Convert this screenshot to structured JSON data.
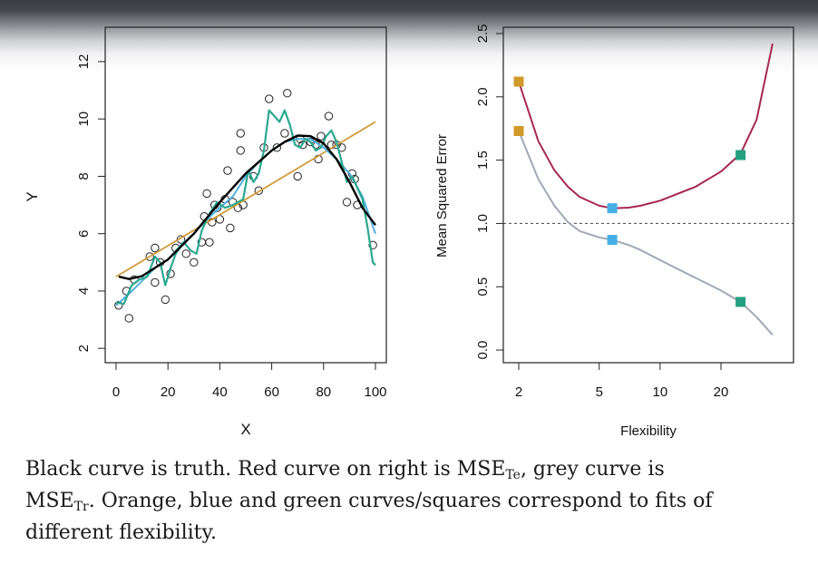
{
  "caption": {
    "line1_pre": "Black curve is truth. Red curve on right is MSE",
    "sub_te": "Te",
    "line1_post": ", grey curve is",
    "line2_pre": "MSE",
    "sub_tr": "Tr",
    "line2_post": ". Orange, blue and green curves/squares correspond to fits of",
    "line3": "different flexibility."
  },
  "colors": {
    "truth": "#000000",
    "linear": "#d19a3a",
    "spline_smooth": "#52b0de",
    "spline_wiggly": "#2aa890",
    "test_mse": "#a6284f",
    "train_mse": "#a0a8b8",
    "points": "#222222",
    "sq_orange": "#d09a2a",
    "sq_blue": "#46b0e6",
    "sq_green": "#22a080"
  },
  "chart_data": [
    {
      "type": "scatter",
      "xlabel": "X",
      "ylabel": "Y",
      "xlim": [
        0,
        100
      ],
      "ylim": [
        1.5,
        13.2
      ],
      "x_ticks": [
        "0",
        "20",
        "40",
        "60",
        "80",
        "100"
      ],
      "y_ticks": [
        "2",
        "4",
        "6",
        "8",
        "10",
        "12"
      ],
      "points": [
        [
          1,
          3.5
        ],
        [
          4,
          4.0
        ],
        [
          5,
          3.05
        ],
        [
          7,
          4.4
        ],
        [
          13,
          5.2
        ],
        [
          15,
          4.3
        ],
        [
          15,
          5.5
        ],
        [
          17,
          5.0
        ],
        [
          19,
          3.7
        ],
        [
          21,
          4.6
        ],
        [
          23,
          5.5
        ],
        [
          25,
          5.8
        ],
        [
          27,
          5.3
        ],
        [
          30,
          5.0
        ],
        [
          33,
          5.7
        ],
        [
          34,
          6.6
        ],
        [
          35,
          7.4
        ],
        [
          36,
          5.7
        ],
        [
          37,
          6.4
        ],
        [
          38,
          7.0
        ],
        [
          39,
          6.9
        ],
        [
          40,
          6.5
        ],
        [
          42,
          7.2
        ],
        [
          43,
          8.2
        ],
        [
          44,
          6.2
        ],
        [
          45,
          7.1
        ],
        [
          47,
          6.9
        ],
        [
          48,
          8.9
        ],
        [
          48,
          9.5
        ],
        [
          49,
          7.0
        ],
        [
          53,
          8.0
        ],
        [
          55,
          7.5
        ],
        [
          57,
          9.0
        ],
        [
          59,
          10.7
        ],
        [
          62,
          9.0
        ],
        [
          65,
          9.5
        ],
        [
          66,
          10.9
        ],
        [
          70,
          8.0
        ],
        [
          71,
          9.3
        ],
        [
          72,
          9.1
        ],
        [
          75,
          9.2
        ],
        [
          77,
          9.1
        ],
        [
          78,
          8.6
        ],
        [
          79,
          9.4
        ],
        [
          82,
          10.1
        ],
        [
          83,
          9.1
        ],
        [
          85,
          9.1
        ],
        [
          87,
          9.0
        ],
        [
          89,
          7.1
        ],
        [
          91,
          8.1
        ],
        [
          92,
          7.9
        ],
        [
          93,
          7.0
        ],
        [
          99,
          5.6
        ]
      ],
      "series": [
        {
          "name": "",
          "color_key": "truth",
          "values": [
            [
              1,
              4.5
            ],
            [
              5,
              4.42
            ],
            [
              10,
              4.52
            ],
            [
              20,
              5.1
            ],
            [
              30,
              6.0
            ],
            [
              40,
              7.1
            ],
            [
              50,
              8.1
            ],
            [
              60,
              8.9
            ],
            [
              65,
              9.2
            ],
            [
              70,
              9.42
            ],
            [
              75,
              9.4
            ],
            [
              80,
              9.15
            ],
            [
              85,
              8.6
            ],
            [
              90,
              7.8
            ],
            [
              95,
              6.9
            ],
            [
              100,
              6.3
            ]
          ]
        },
        {
          "name": "",
          "color_key": "linear",
          "values": [
            [
              0,
              4.5
            ],
            [
              100,
              9.9
            ]
          ]
        },
        {
          "name": "",
          "color_key": "spline_smooth",
          "values": [
            [
              0,
              3.5
            ],
            [
              5,
              3.9
            ],
            [
              10,
              4.35
            ],
            [
              15,
              4.8
            ],
            [
              20,
              5.1
            ],
            [
              25,
              5.6
            ],
            [
              30,
              6.0
            ],
            [
              35,
              6.5
            ],
            [
              40,
              6.9
            ],
            [
              45,
              7.3
            ],
            [
              50,
              8.0
            ],
            [
              55,
              8.5
            ],
            [
              60,
              8.9
            ],
            [
              65,
              9.2
            ],
            [
              70,
              9.3
            ],
            [
              75,
              9.3
            ],
            [
              80,
              9.0
            ],
            [
              85,
              8.6
            ],
            [
              90,
              8.1
            ],
            [
              95,
              7.3
            ],
            [
              100,
              6.0
            ]
          ]
        },
        {
          "name": "",
          "color_key": "spline_wiggly",
          "values": [
            [
              0,
              3.6
            ],
            [
              3,
              3.55
            ],
            [
              6,
              4.2
            ],
            [
              9,
              4.4
            ],
            [
              12,
              4.5
            ],
            [
              15,
              5.2
            ],
            [
              17,
              5.0
            ],
            [
              19,
              4.2
            ],
            [
              21,
              4.8
            ],
            [
              23,
              5.3
            ],
            [
              26,
              5.7
            ],
            [
              29,
              5.4
            ],
            [
              31,
              5.3
            ],
            [
              33,
              6.1
            ],
            [
              36,
              6.7
            ],
            [
              39,
              7.1
            ],
            [
              42,
              6.9
            ],
            [
              45,
              7.0
            ],
            [
              47,
              7.1
            ],
            [
              49,
              7.2
            ],
            [
              51,
              8.2
            ],
            [
              53,
              7.8
            ],
            [
              55,
              8.1
            ],
            [
              57,
              8.9
            ],
            [
              59,
              10.3
            ],
            [
              61,
              10.1
            ],
            [
              63,
              9.9
            ],
            [
              65,
              10.3
            ],
            [
              67,
              9.8
            ],
            [
              69,
              9.1
            ],
            [
              71,
              9.0
            ],
            [
              73,
              9.3
            ],
            [
              75,
              9.2
            ],
            [
              77,
              8.9
            ],
            [
              79,
              9.0
            ],
            [
              81,
              9.4
            ],
            [
              83,
              9.6
            ],
            [
              85,
              9.2
            ],
            [
              87,
              8.5
            ],
            [
              89,
              7.8
            ],
            [
              91,
              8.0
            ],
            [
              93,
              7.6
            ],
            [
              95,
              7.2
            ],
            [
              97,
              6.2
            ],
            [
              99,
              5.0
            ],
            [
              100,
              4.9
            ]
          ]
        }
      ]
    },
    {
      "type": "line",
      "xlabel": "Flexibility",
      "ylabel": "Mean Squared Error",
      "x_scale": "log",
      "xlim": [
        1.8,
        38
      ],
      "ylim": [
        -0.1,
        2.55
      ],
      "x_ticks": [
        "2",
        "5",
        "10",
        "20"
      ],
      "y_ticks": [
        "0.0",
        "0.5",
        "1.0",
        "1.5",
        "2.0",
        "2.5"
      ],
      "reference_line": 1.0,
      "series": [
        {
          "name": "",
          "color_key": "test_mse",
          "values": [
            [
              2,
              2.12
            ],
            [
              2.5,
              1.65
            ],
            [
              3,
              1.42
            ],
            [
              3.5,
              1.29
            ],
            [
              4,
              1.21
            ],
            [
              5,
              1.14
            ],
            [
              5.8,
              1.12
            ],
            [
              7,
              1.125
            ],
            [
              8,
              1.14
            ],
            [
              10,
              1.18
            ],
            [
              15,
              1.29
            ],
            [
              20,
              1.41
            ],
            [
              25,
              1.55
            ],
            [
              30,
              1.82
            ],
            [
              36,
              2.42
            ]
          ]
        },
        {
          "name": "",
          "color_key": "train_mse",
          "values": [
            [
              2,
              1.73
            ],
            [
              2.5,
              1.35
            ],
            [
              3,
              1.14
            ],
            [
              3.5,
              1.01
            ],
            [
              4,
              0.94
            ],
            [
              5,
              0.89
            ],
            [
              5.8,
              0.87
            ],
            [
              7,
              0.83
            ],
            [
              8,
              0.79
            ],
            [
              10,
              0.71
            ],
            [
              15,
              0.57
            ],
            [
              20,
              0.47
            ],
            [
              25,
              0.38
            ],
            [
              30,
              0.26
            ],
            [
              36,
              0.12
            ]
          ]
        }
      ],
      "markers": [
        {
          "color_key": "sq_orange",
          "x": 2,
          "y": 2.12
        },
        {
          "color_key": "sq_orange",
          "x": 2,
          "y": 1.73
        },
        {
          "color_key": "sq_blue",
          "x": 5.8,
          "y": 1.12
        },
        {
          "color_key": "sq_blue",
          "x": 5.8,
          "y": 0.87
        },
        {
          "color_key": "sq_green",
          "x": 25,
          "y": 1.54
        },
        {
          "color_key": "sq_green",
          "x": 25,
          "y": 0.38
        }
      ]
    }
  ]
}
